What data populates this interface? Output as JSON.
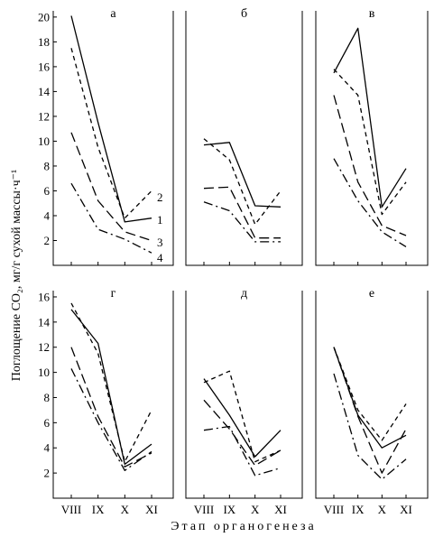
{
  "figure": {
    "ylabel": "Поглощение CO₂, мг/г сухой массы·ч⁻¹",
    "xlabel": "Этап органогенеза",
    "line_labels": [
      "2",
      "1",
      "3",
      "4"
    ]
  },
  "chart_data": [
    {
      "type": "line",
      "title": "а",
      "categories": [
        "VIII",
        "IX",
        "X",
        "XI"
      ],
      "ylim": [
        0,
        20.5
      ],
      "yticks": [
        2,
        4,
        6,
        8,
        10,
        12,
        14,
        16,
        18,
        20
      ],
      "series": [
        {
          "name": "1",
          "values": [
            20.1,
            11.5,
            3.5,
            3.8
          ]
        },
        {
          "name": "2",
          "values": [
            17.5,
            9.5,
            3.8,
            6.0
          ]
        },
        {
          "name": "3",
          "values": [
            10.7,
            5.2,
            2.7,
            2.0
          ]
        },
        {
          "name": "4",
          "values": [
            6.6,
            2.9,
            2.1,
            1.0
          ]
        }
      ]
    },
    {
      "type": "line",
      "title": "б",
      "categories": [
        "VIII",
        "IX",
        "X",
        "XI"
      ],
      "ylim": [
        0,
        20.5
      ],
      "yticks": [],
      "series": [
        {
          "name": "1",
          "values": [
            9.7,
            9.9,
            4.8,
            4.7
          ]
        },
        {
          "name": "2",
          "values": [
            10.2,
            8.5,
            3.3,
            6.0
          ]
        },
        {
          "name": "3",
          "values": [
            6.2,
            6.3,
            2.2,
            2.2
          ]
        },
        {
          "name": "4",
          "values": [
            5.1,
            4.4,
            1.9,
            1.9
          ]
        }
      ]
    },
    {
      "type": "line",
      "title": "в",
      "categories": [
        "VIII",
        "IX",
        "X",
        "XI"
      ],
      "ylim": [
        0,
        20.5
      ],
      "yticks": [],
      "series": [
        {
          "name": "1",
          "values": [
            15.5,
            19.1,
            4.7,
            7.8
          ]
        },
        {
          "name": "2",
          "values": [
            15.8,
            13.7,
            4.1,
            6.7
          ]
        },
        {
          "name": "3",
          "values": [
            13.7,
            6.7,
            3.2,
            2.4
          ]
        },
        {
          "name": "4",
          "values": [
            8.6,
            5.2,
            2.7,
            1.5
          ]
        }
      ]
    },
    {
      "type": "line",
      "title": "г",
      "categories": [
        "VIII",
        "IX",
        "X",
        "XI"
      ],
      "ylim": [
        0,
        16.5
      ],
      "yticks": [
        2,
        4,
        6,
        8,
        10,
        12,
        14,
        16
      ],
      "series": [
        {
          "name": "1",
          "values": [
            15.0,
            12.3,
            2.7,
            4.3
          ]
        },
        {
          "name": "2",
          "values": [
            15.5,
            11.5,
            2.9,
            7.0
          ]
        },
        {
          "name": "3",
          "values": [
            12.0,
            6.5,
            2.5,
            3.6
          ]
        },
        {
          "name": "4",
          "values": [
            10.3,
            6.0,
            2.2,
            3.7
          ]
        }
      ]
    },
    {
      "type": "line",
      "title": "д",
      "categories": [
        "VIII",
        "IX",
        "X",
        "XI"
      ],
      "ylim": [
        0,
        16.5
      ],
      "yticks": [],
      "series": [
        {
          "name": "1",
          "values": [
            9.5,
            6.6,
            3.3,
            5.4
          ]
        },
        {
          "name": "2",
          "values": [
            9.2,
            10.1,
            2.9,
            3.8
          ]
        },
        {
          "name": "3",
          "values": [
            7.8,
            5.5,
            2.6,
            3.8
          ]
        },
        {
          "name": "4",
          "values": [
            5.4,
            5.7,
            1.8,
            2.4
          ]
        }
      ]
    },
    {
      "type": "line",
      "title": "е",
      "categories": [
        "VIII",
        "IX",
        "X",
        "XI"
      ],
      "ylim": [
        0,
        16.5
      ],
      "yticks": [],
      "series": [
        {
          "name": "1",
          "values": [
            12.0,
            6.6,
            4.0,
            5.0
          ]
        },
        {
          "name": "2",
          "values": [
            12.0,
            7.0,
            4.6,
            7.5
          ]
        },
        {
          "name": "3",
          "values": [
            12.0,
            6.5,
            2.0,
            5.5
          ]
        },
        {
          "name": "4",
          "values": [
            9.9,
            3.4,
            1.5,
            3.1
          ]
        }
      ]
    }
  ]
}
